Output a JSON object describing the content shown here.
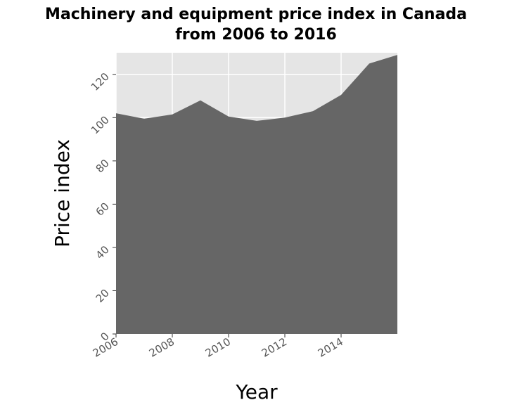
{
  "chart_data": {
    "type": "area",
    "title_line1": "Machinery and equipment price index in Canada",
    "title_line2": "from 2006 to 2016",
    "xlabel": "Year",
    "ylabel": "Price index",
    "x": [
      2006,
      2007,
      2008,
      2009,
      2010,
      2011,
      2012,
      2013,
      2014,
      2015,
      2016
    ],
    "values": [
      102,
      99.5,
      101.5,
      108,
      100.5,
      98.5,
      100,
      103,
      110.5,
      125,
      129
    ],
    "xlim": [
      2006,
      2016
    ],
    "ylim": [
      0,
      130
    ],
    "x_ticks": [
      2006,
      2008,
      2010,
      2012,
      2014
    ],
    "x_tick_labels": [
      "2006",
      "2008",
      "2010",
      "2012",
      "2014"
    ],
    "y_ticks": [
      0,
      20,
      40,
      60,
      80,
      100,
      120
    ],
    "y_tick_labels": [
      "0",
      "20",
      "40",
      "60",
      "80",
      "100",
      "120"
    ],
    "grid": true,
    "colors": {
      "panel": "#e5e5e5",
      "area": "#666666",
      "grid": "#ffffff"
    }
  }
}
